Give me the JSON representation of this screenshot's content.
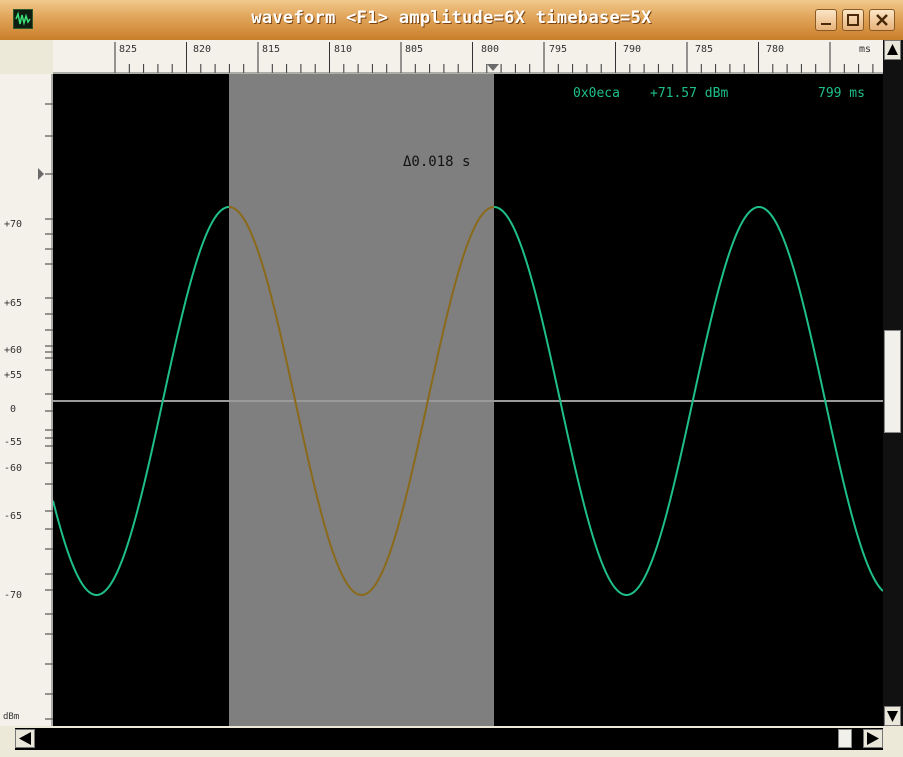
{
  "window": {
    "title": "waveform  <F1> amplitude=6X timebase=5X",
    "app_icon": "waveform-icon",
    "controls": {
      "minimize": "minimize-icon",
      "maximize": "maximize-icon",
      "close": "close-icon"
    }
  },
  "ruler": {
    "labels": [
      "825",
      "820",
      "815",
      "810",
      "805",
      "800",
      "795",
      "790",
      "785",
      "780",
      "ms"
    ]
  },
  "amplitude_axis": {
    "labels": [
      "+70",
      "+65",
      "+60",
      "+55",
      "0",
      "-55",
      "-60",
      "-65",
      "-70"
    ],
    "unit": "dBm"
  },
  "readout": {
    "address": "0x0eca",
    "level": "+71.57 dBm",
    "time": "799 ms"
  },
  "selection": {
    "delta_label": "Δ0.018 s"
  },
  "colors": {
    "trace": "#1fbf8a",
    "trace_selected": "#8a6a1a",
    "selection_fill": "#7f7f7f",
    "baseline": "#9a9a9a",
    "titlebar": "#e0a358"
  }
}
